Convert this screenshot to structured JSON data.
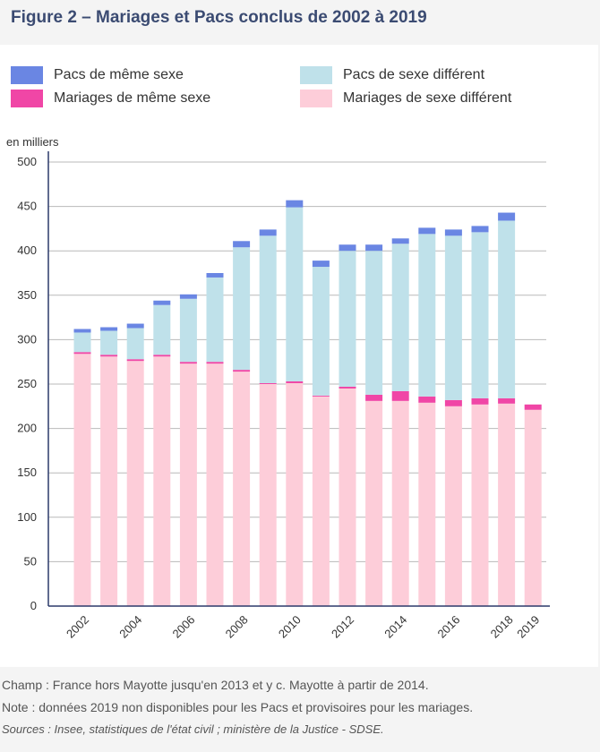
{
  "title": "Figure 2 – Mariages et Pacs conclus de 2002 à 2019",
  "legend": [
    {
      "label": "Pacs de même sexe",
      "color": "#6a86e3"
    },
    {
      "label": "Pacs de sexe différent",
      "color": "#bfe1ea"
    },
    {
      "label": "Mariages de même sexe",
      "color": "#f046a6"
    },
    {
      "label": "Mariages de sexe différent",
      "color": "#fdcdd9"
    }
  ],
  "chart_data": {
    "type": "bar",
    "stacked": true,
    "ylabel": "en milliers",
    "ylim": [
      0,
      500
    ],
    "yticks": [
      0,
      50,
      100,
      150,
      200,
      250,
      300,
      350,
      400,
      450,
      500
    ],
    "categories": [
      "2002",
      "2003",
      "2004",
      "2005",
      "2006",
      "2007",
      "2008",
      "2009",
      "2010",
      "2011",
      "2012",
      "2013",
      "2014",
      "2015",
      "2016",
      "2017",
      "2018",
      "2019"
    ],
    "xtick_labels": [
      "2002",
      "2004",
      "2006",
      "2008",
      "2010",
      "2012",
      "2014",
      "2016",
      "2018",
      "2019"
    ],
    "series": [
      {
        "name": "Mariages de sexe différent",
        "color": "#fdcdd9",
        "values": [
          284,
          281,
          276,
          281,
          273,
          273,
          264,
          250,
          251,
          236,
          245,
          231,
          231,
          229,
          225,
          227,
          228,
          221
        ]
      },
      {
        "name": "Mariages de même sexe",
        "color": "#f046a6",
        "values": [
          2,
          2,
          2,
          2,
          2,
          2,
          2,
          1,
          2,
          1,
          2,
          7,
          11,
          7,
          7,
          7,
          6,
          6
        ]
      },
      {
        "name": "Pacs de sexe différent",
        "color": "#bfe1ea",
        "values": [
          22,
          27,
          35,
          56,
          71,
          95,
          138,
          166,
          196,
          145,
          153,
          162,
          166,
          183,
          185,
          187,
          200,
          0
        ]
      },
      {
        "name": "Pacs de même sexe",
        "color": "#6a86e3",
        "values": [
          4,
          4,
          5,
          5,
          5,
          5,
          7,
          7,
          8,
          7,
          7,
          7,
          6,
          7,
          7,
          7,
          9,
          0
        ]
      }
    ]
  },
  "notes": {
    "champ": "Champ : France hors Mayotte jusqu'en 2013 et y c. Mayotte à partir de 2014.",
    "note": "Note : données 2019 non disponibles pour les Pacs et provisoires pour les mariages.",
    "sources": "Sources : Insee, statistiques de l'état civil ; ministère de la Justice - SDSE."
  }
}
